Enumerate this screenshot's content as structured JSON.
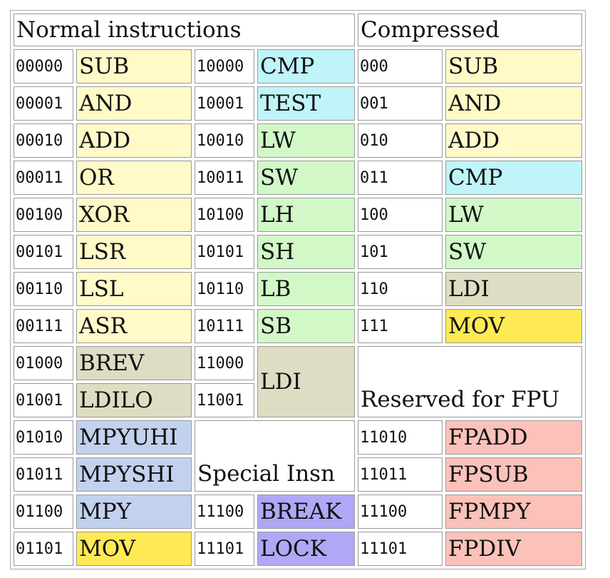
{
  "table": {
    "header": [
      "Normal instructions",
      "Compressed"
    ],
    "rows": [
      [
        "00000",
        "SUB",
        "10000",
        "CMP",
        "000",
        "SUB"
      ],
      [
        "00001",
        "AND",
        "10001",
        "TEST",
        "001",
        "AND"
      ],
      [
        "00010",
        "ADD",
        "10010",
        "LW",
        "010",
        "ADD"
      ],
      [
        "00011",
        "OR",
        "10011",
        "SW",
        "011",
        "CMP"
      ],
      [
        "00100",
        "XOR",
        "10100",
        "LH",
        "100",
        "LW"
      ],
      [
        "00101",
        "LSR",
        "10101",
        "SH",
        "101",
        "SW"
      ],
      [
        "00110",
        "LSL",
        "10110",
        "LB",
        "110",
        "LDI"
      ],
      [
        "00111",
        "ASR",
        "10111",
        "SB",
        "111",
        "MOV"
      ],
      [
        "01000",
        "BREV",
        "11000",
        "LDI",
        "Reserved for FPU"
      ],
      [
        "01001",
        "LDILO",
        "11001"
      ],
      [
        "01010",
        "MPYUHI",
        "Special Insn",
        "11010",
        "FPADD"
      ],
      [
        "01011",
        "MPYSHI",
        "11011",
        "FPSUB"
      ],
      [
        "01100",
        "MPY",
        "11100",
        "BREAK",
        "11100",
        "FPMPY"
      ],
      [
        "01101",
        "MOV",
        "11101",
        "LOCK",
        "11101",
        "FPDIV"
      ]
    ]
  }
}
